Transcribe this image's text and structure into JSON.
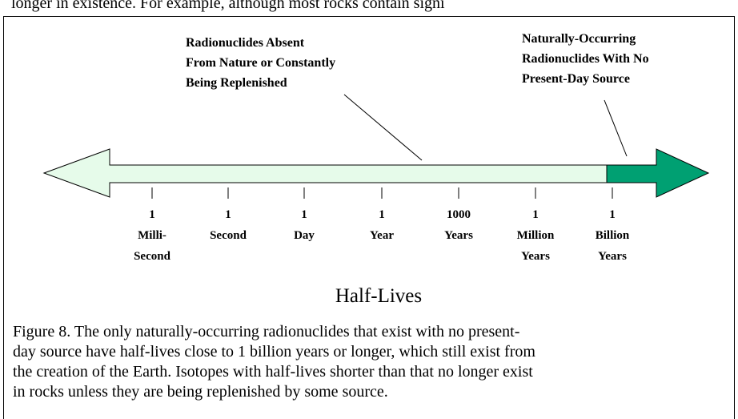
{
  "top_text": "longer in existence. For example, although most rocks contain signi",
  "annotations": [
    {
      "lines": [
        "Radionuclides Absent",
        "From Nature or Constantly",
        "Being Replenished"
      ]
    },
    {
      "lines": [
        "Naturally-Occurring",
        "Radionuclides With No",
        "Present-Day Source"
      ]
    }
  ],
  "scale": [
    {
      "lines": [
        "1",
        "Milli-",
        "Second"
      ]
    },
    {
      "lines": [
        "1",
        "Second"
      ]
    },
    {
      "lines": [
        "1",
        "Day"
      ]
    },
    {
      "lines": [
        "1",
        "Year"
      ]
    },
    {
      "lines": [
        "1000",
        "Years"
      ]
    },
    {
      "lines": [
        "1",
        "Million",
        "Years"
      ]
    },
    {
      "lines": [
        "1",
        "Billion",
        "Years"
      ]
    }
  ],
  "axis_title": "Half-Lives",
  "caption": {
    "lines": [
      "Figure 8. The only naturally-occurring radionuclides that exist with no present-",
      "day source have half-lives close to 1 billion years or longer, which still exist from",
      "the creation of the Earth. Isotopes with half-lives shorter than that no longer exist",
      "in rocks unless they are being replenished by some source."
    ]
  }
}
